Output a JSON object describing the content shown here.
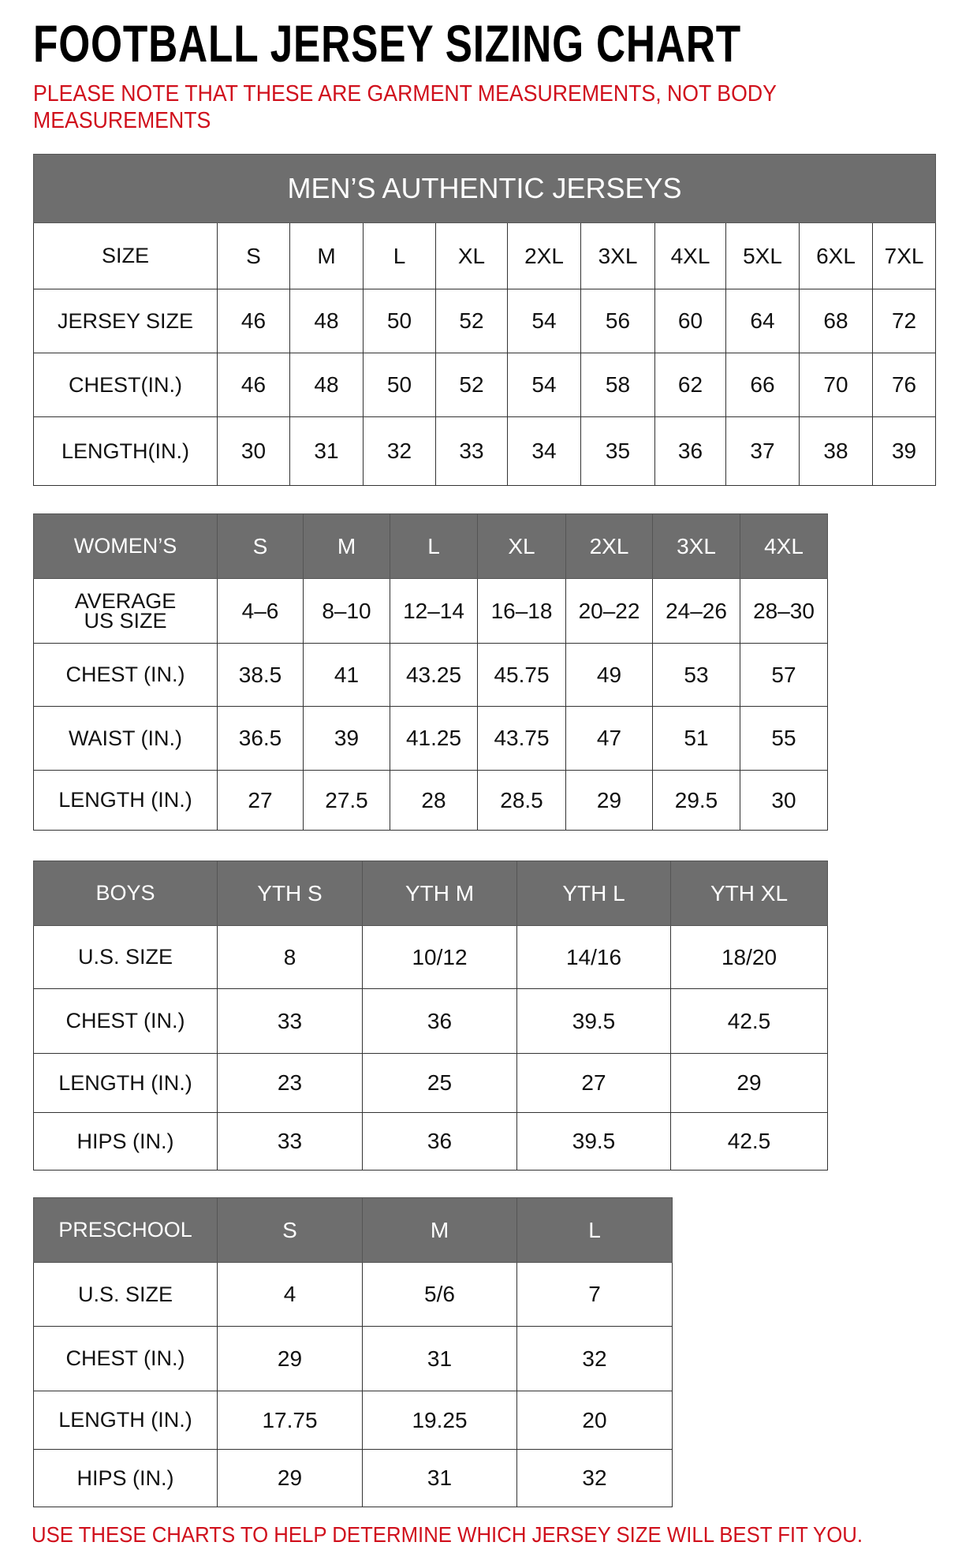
{
  "title": "FOOTBALL JERSEY SIZING CHART",
  "note": "PLEASE NOTE THAT THESE ARE GARMENT MEASUREMENTS, NOT BODY MEASUREMENTS",
  "footer": "USE THESE CHARTS TO HELP DETERMINE WHICH JERSEY SIZE WILL BEST FIT YOU.",
  "colors": {
    "header_bg": "#6e6e6e",
    "accent_red": "#d0101c"
  },
  "tables": [
    {
      "banner": "MEN’S AUTHENTIC JERSEYS",
      "header": [
        "SIZE",
        "S",
        "M",
        "L",
        "XL",
        "2XL",
        "3XL",
        "4XL",
        "5XL",
        "6XL",
        "7XL"
      ],
      "header_style": "plain",
      "rows": [
        [
          "JERSEY SIZE",
          "46",
          "48",
          "50",
          "52",
          "54",
          "56",
          "60",
          "64",
          "68",
          "72"
        ],
        [
          "CHEST(IN.)",
          "46",
          "48",
          "50",
          "52",
          "54",
          "58",
          "62",
          "66",
          "70",
          "76"
        ],
        [
          "LENGTH(IN.)",
          "30",
          "31",
          "32",
          "33",
          "34",
          "35",
          "36",
          "37",
          "38",
          "39"
        ]
      ]
    },
    {
      "header": [
        "WOMEN’S",
        "S",
        "M",
        "L",
        "XL",
        "2XL",
        "3XL",
        "4XL"
      ],
      "header_style": "gray",
      "rows": [
        [
          "AVERAGE\nUS SIZE",
          "4–6",
          "8–10",
          "12–14",
          "16–18",
          "20–22",
          "24–26",
          "28–30"
        ],
        [
          "CHEST (IN.)",
          "38.5",
          "41",
          "43.25",
          "45.75",
          "49",
          "53",
          "57"
        ],
        [
          "WAIST (IN.)",
          "36.5",
          "39",
          "41.25",
          "43.75",
          "47",
          "51",
          "55"
        ],
        [
          "LENGTH (IN.)",
          "27",
          "27.5",
          "28",
          "28.5",
          "29",
          "29.5",
          "30"
        ]
      ]
    },
    {
      "header": [
        "BOYS",
        "YTH S",
        "YTH M",
        "YTH L",
        "YTH XL"
      ],
      "header_style": "gray",
      "rows": [
        [
          "U.S. SIZE",
          "8",
          "10/12",
          "14/16",
          "18/20"
        ],
        [
          "CHEST (IN.)",
          "33",
          "36",
          "39.5",
          "42.5"
        ],
        [
          "LENGTH (IN.)",
          "23",
          "25",
          "27",
          "29"
        ],
        [
          "HIPS (IN.)",
          "33",
          "36",
          "39.5",
          "42.5"
        ]
      ]
    },
    {
      "header": [
        "PRESCHOOL",
        "S",
        "M",
        "L"
      ],
      "header_style": "gray",
      "rows": [
        [
          "U.S. SIZE",
          "4",
          "5/6",
          "7"
        ],
        [
          "CHEST (IN.)",
          "29",
          "31",
          "32"
        ],
        [
          "LENGTH (IN.)",
          "17.75",
          "19.25",
          "20"
        ],
        [
          "HIPS (IN.)",
          "29",
          "31",
          "32"
        ]
      ]
    }
  ]
}
